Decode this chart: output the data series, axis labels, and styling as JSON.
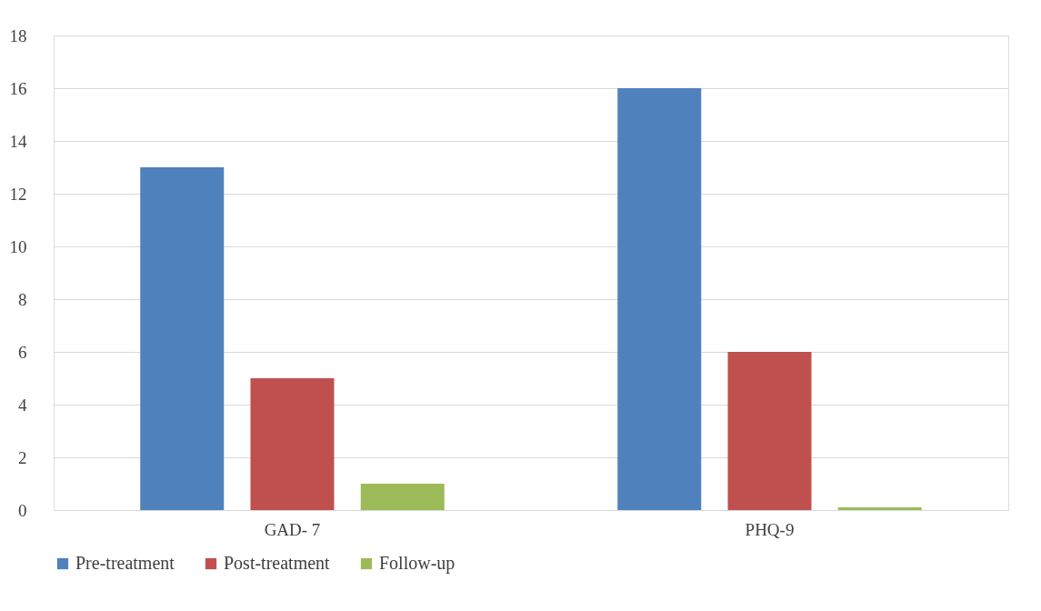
{
  "chart_data": {
    "type": "bar",
    "categories": [
      "GAD- 7",
      "PHQ-9"
    ],
    "series": [
      {
        "name": "Pre-treatment",
        "color": "#4f81bd",
        "values": [
          13,
          16
        ]
      },
      {
        "name": "Post-treatment",
        "color": "#c0504d",
        "values": [
          5,
          6
        ]
      },
      {
        "name": "Follow-up",
        "color": "#9bbb59",
        "values": [
          1,
          0.1
        ]
      }
    ],
    "ylim": [
      0,
      18
    ],
    "yticks": [
      0,
      2,
      4,
      6,
      8,
      10,
      12,
      14,
      16,
      18
    ],
    "grid": "y",
    "legend": "bottom"
  }
}
